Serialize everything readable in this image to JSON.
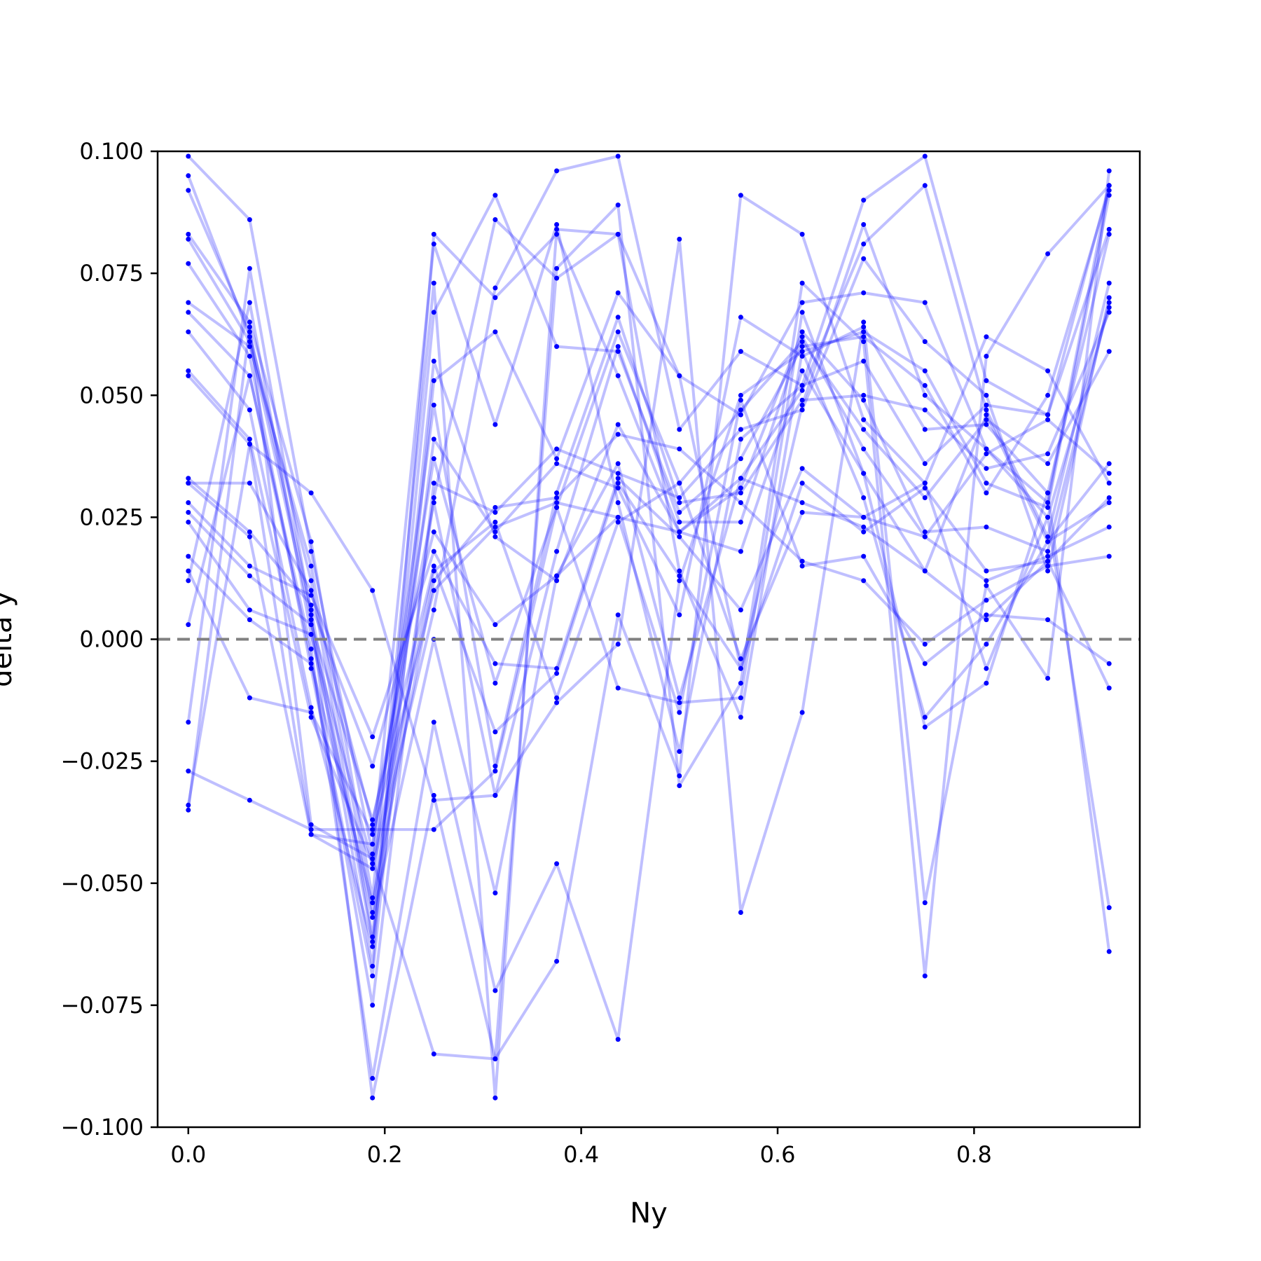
{
  "chart_data": {
    "type": "line",
    "title": "",
    "xlabel": "Ny",
    "ylabel": "delta y",
    "xlim": [
      -0.03125,
      0.96875
    ],
    "ylim": [
      -0.1,
      0.1
    ],
    "x_ticks": [
      0.0,
      0.2,
      0.4,
      0.6,
      0.8
    ],
    "x_tick_labels": [
      "0.0",
      "0.2",
      "0.4",
      "0.6",
      "0.8"
    ],
    "y_ticks": [
      -0.1,
      -0.075,
      -0.05,
      -0.025,
      0.0,
      0.025,
      0.05,
      0.075,
      0.1
    ],
    "y_tick_labels": [
      "−0.100",
      "−0.075",
      "−0.050",
      "−0.025",
      "0.000",
      "0.025",
      "0.050",
      "0.075",
      "0.100"
    ],
    "grid": false,
    "legend": "none",
    "reference_line": {
      "y": 0.0,
      "style": "dashed",
      "color": "#808080"
    },
    "line_color": "#0000ff",
    "line_alpha": 0.25,
    "marker_color": "#0000ff",
    "x": [
      0.0,
      0.0625,
      0.125,
      0.1875,
      0.25,
      0.3125,
      0.375,
      0.4375,
      0.5,
      0.5625,
      0.625,
      0.6875,
      0.75,
      0.8125,
      0.875,
      0.9375
    ],
    "series": [
      {
        "values": [
          0.083,
          0.065,
          0.02,
          -0.053,
          0.073,
          -0.094,
          0.084,
          0.083,
          0.014,
          -0.016,
          0.059,
          0.063,
          0.055,
          0.032,
          0.027,
          0.091
        ]
      },
      {
        "values": [
          0.099,
          0.086,
          0.018,
          -0.044,
          0.081,
          0.044,
          0.085,
          0.028,
          -0.023,
          0.041,
          0.052,
          0.057,
          0.036,
          0.048,
          0.046,
          0.084
        ]
      },
      {
        "values": [
          0.095,
          0.062,
          0.012,
          -0.061,
          0.067,
          0.091,
          0.06,
          0.059,
          0.026,
          0.037,
          0.06,
          0.062,
          0.052,
          0.03,
          0.05,
          0.092
        ]
      },
      {
        "values": [
          0.092,
          0.063,
          0.006,
          -0.062,
          0.029,
          0.086,
          0.074,
          0.083,
          0.054,
          -0.006,
          0.048,
          0.085,
          0.05,
          0.039,
          0.028,
          0.093
        ]
      },
      {
        "values": [
          0.082,
          0.061,
          0.004,
          -0.067,
          0.083,
          0.07,
          0.083,
          0.054,
          0.022,
          0.033,
          0.051,
          0.081,
          0.093,
          0.047,
          0.021,
          0.073
        ]
      },
      {
        "values": [
          0.077,
          0.058,
          -0.006,
          -0.069,
          0.053,
          0.063,
          0.037,
          0.071,
          0.054,
          0.046,
          0.069,
          0.071,
          0.069,
          0.039,
          0.025,
          0.068
        ]
      },
      {
        "values": [
          0.069,
          0.06,
          0.015,
          -0.056,
          0.041,
          0.022,
          0.036,
          0.031,
          0.005,
          0.066,
          0.058,
          0.064,
          0.043,
          0.044,
          0.03,
          0.083
        ]
      },
      {
        "values": [
          0.067,
          0.054,
          -0.004,
          -0.075,
          0.032,
          0.026,
          0.039,
          0.034,
          0.029,
          0.043,
          0.047,
          0.078,
          0.061,
          0.05,
          0.014,
          0.07
        ]
      },
      {
        "values": [
          0.063,
          0.047,
          -0.014,
          -0.063,
          0.057,
          0.021,
          0.012,
          0.044,
          0.022,
          0.031,
          0.063,
          0.049,
          0.022,
          0.023,
          0.018,
          0.069
        ]
      },
      {
        "values": [
          0.055,
          0.041,
          -0.016,
          -0.046,
          0.048,
          -0.026,
          0.03,
          0.066,
          0.028,
          0.03,
          0.049,
          0.05,
          0.047,
          0.035,
          0.038,
          0.067
        ]
      },
      {
        "values": [
          0.054,
          0.04,
          -0.04,
          -0.042,
          0.037,
          -0.009,
          0.027,
          0.063,
          0.032,
          0.047,
          0.061,
          0.043,
          0.029,
          0.045,
          0.036,
          0.059
        ]
      },
      {
        "values": [
          0.032,
          0.032,
          0.01,
          -0.038,
          0.028,
          -0.032,
          0.018,
          0.06,
          0.024,
          0.024,
          0.062,
          0.039,
          0.021,
          0.038,
          0.045,
          0.034
        ]
      },
      {
        "values": [
          0.033,
          0.022,
          0.007,
          -0.026,
          0.022,
          0.003,
          0.013,
          0.025,
          0.022,
          0.018,
          0.055,
          0.034,
          0.014,
          0.046,
          0.02,
          0.036
        ]
      },
      {
        "values": [
          0.028,
          0.015,
          0.009,
          -0.02,
          0.018,
          -0.005,
          -0.006,
          0.033,
          0.021,
          0.006,
          0.035,
          0.025,
          0.032,
          0.062,
          0.055,
          0.032
        ]
      },
      {
        "values": [
          0.026,
          0.013,
          0.003,
          -0.037,
          0.015,
          -0.019,
          -0.007,
          0.032,
          0.013,
          -0.006,
          0.032,
          0.022,
          0.031,
          0.014,
          0.016,
          0.029
        ]
      },
      {
        "values": [
          0.024,
          0.006,
          0.001,
          -0.046,
          0.014,
          0.024,
          -0.012,
          0.024,
          0.032,
          -0.004,
          0.026,
          0.025,
          0.021,
          0.012,
          0.017,
          0.023
        ]
      },
      {
        "values": [
          0.017,
          0.004,
          -0.005,
          -0.054,
          0.012,
          0.027,
          0.029,
          0.042,
          0.039,
          0.028,
          0.016,
          0.012,
          -0.001,
          0.008,
          0.015,
          0.017
        ]
      },
      {
        "values": [
          0.014,
          -0.012,
          -0.015,
          -0.04,
          0.01,
          0.023,
          0.028,
          0.025,
          -0.015,
          0.049,
          0.015,
          0.017,
          -0.005,
          0.005,
          0.004,
          -0.005
        ]
      },
      {
        "values": [
          0.012,
          0.069,
          0.001,
          -0.057,
          0.0,
          -0.052,
          0.013,
          0.036,
          -0.012,
          0.033,
          0.028,
          0.023,
          0.014,
          0.004,
          0.016,
          -0.01
        ]
      },
      {
        "values": [
          0.003,
          0.054,
          -0.002,
          -0.09,
          -0.017,
          -0.072,
          -0.046,
          -0.082,
          0.012,
          0.05,
          0.059,
          0.029,
          -0.016,
          -0.001,
          0.02,
          0.028
        ]
      },
      {
        "values": [
          -0.017,
          0.076,
          0.005,
          -0.094,
          -0.032,
          -0.086,
          -0.066,
          0.005,
          -0.028,
          0.091,
          0.083,
          0.045,
          0.032,
          -0.006,
          0.025,
          -0.055
        ]
      },
      {
        "values": [
          -0.027,
          -0.033,
          -0.039,
          -0.039,
          -0.039,
          -0.027,
          0.027,
          -0.01,
          -0.013,
          -0.012,
          0.067,
          0.034,
          -0.018,
          -0.009,
          0.03,
          -0.064
        ]
      },
      {
        "values": [
          -0.034,
          0.04,
          0.03,
          0.01,
          -0.033,
          -0.032,
          -0.013,
          -0.001,
          0.082,
          -0.056,
          -0.015,
          0.065,
          -0.054,
          0.011,
          -0.008,
          0.096
        ]
      },
      {
        "values": [
          -0.035,
          0.064,
          -0.038,
          -0.045,
          -0.085,
          -0.086,
          0.076,
          0.089,
          -0.03,
          -0.009,
          0.073,
          0.061,
          -0.069,
          0.058,
          0.079,
          0.093
        ]
      },
      {
        "values": [
          0.032,
          0.021,
          -0.04,
          -0.047,
          0.006,
          0.072,
          0.096,
          0.099,
          0.043,
          0.059,
          0.052,
          0.09,
          0.099,
          0.053,
          0.046,
          0.093
        ]
      }
    ]
  }
}
